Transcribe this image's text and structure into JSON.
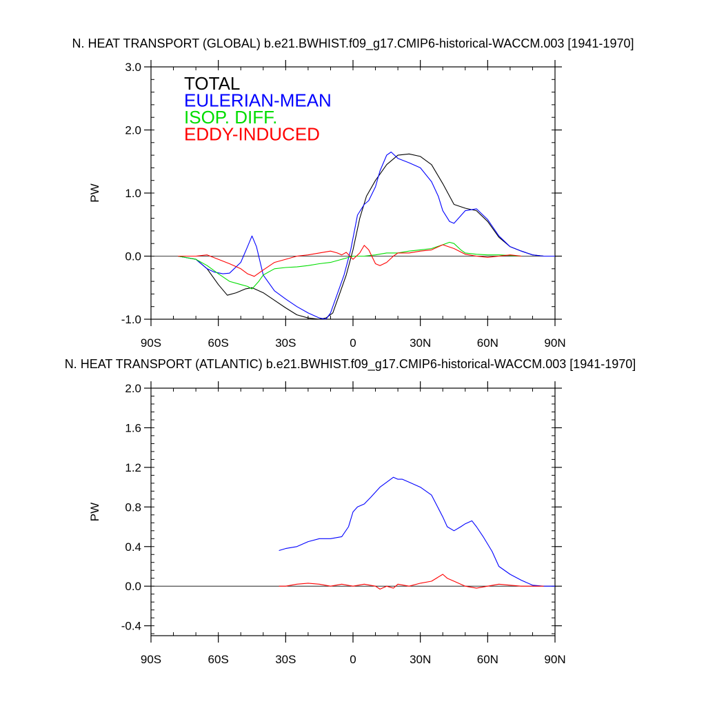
{
  "chart_data": [
    {
      "type": "line",
      "title": "N. HEAT TRANSPORT (GLOBAL) b.e21.BWHIST.f09_g17.CMIP6-historical-WACCM.003 [1941-1970]",
      "xlabel": "",
      "ylabel": "PW",
      "xlim": [
        -90,
        90
      ],
      "ylim": [
        -1.0,
        3.0
      ],
      "x_ticks": [
        -90,
        -60,
        -30,
        0,
        30,
        60,
        90
      ],
      "x_tick_labels": [
        "90S",
        "60S",
        "30S",
        "0",
        "30N",
        "60N",
        "90N"
      ],
      "y_ticks": [
        -1.0,
        0.0,
        1.0,
        2.0,
        3.0
      ],
      "y_tick_labels": [
        "-1.0",
        "0.0",
        "1.0",
        "2.0",
        "3.0"
      ],
      "zero_line": true,
      "legend_position": "top-left",
      "series": [
        {
          "name": "TOTAL",
          "color": "#000000",
          "x": [
            -78,
            -70,
            -65,
            -60,
            -56,
            -52,
            -48,
            -45,
            -40,
            -35,
            -30,
            -25,
            -20,
            -15,
            -12,
            -9,
            -6,
            -3,
            0,
            3,
            6,
            10,
            15,
            20,
            25,
            30,
            35,
            40,
            45,
            50,
            55,
            60,
            65,
            70,
            75,
            80,
            85,
            90
          ],
          "y": [
            0.0,
            -0.05,
            -0.2,
            -0.45,
            -0.62,
            -0.58,
            -0.52,
            -0.5,
            -0.58,
            -0.7,
            -0.82,
            -0.93,
            -0.98,
            -1.0,
            -0.98,
            -0.9,
            -0.6,
            -0.3,
            0.1,
            0.6,
            0.95,
            1.2,
            1.45,
            1.6,
            1.62,
            1.58,
            1.45,
            1.15,
            0.82,
            0.76,
            0.72,
            0.55,
            0.3,
            0.15,
            0.08,
            0.02,
            0.0,
            0.0
          ]
        },
        {
          "name": "EULERIAN-MEAN",
          "color": "#0000ff",
          "x": [
            -78,
            -70,
            -65,
            -62,
            -58,
            -55,
            -50,
            -47,
            -45,
            -43,
            -40,
            -35,
            -30,
            -25,
            -20,
            -15,
            -12,
            -10,
            -7,
            -4,
            -1,
            2,
            5,
            7,
            10,
            12,
            15,
            17,
            20,
            25,
            30,
            35,
            38,
            40,
            43,
            45,
            50,
            55,
            60,
            65,
            70,
            75,
            80,
            85,
            90
          ],
          "y": [
            0.0,
            -0.05,
            -0.2,
            -0.25,
            -0.28,
            -0.27,
            -0.1,
            0.15,
            0.32,
            0.15,
            -0.3,
            -0.55,
            -0.68,
            -0.8,
            -0.9,
            -0.98,
            -1.0,
            -0.9,
            -0.6,
            -0.3,
            0.1,
            0.65,
            0.82,
            0.88,
            1.1,
            1.35,
            1.6,
            1.65,
            1.55,
            1.48,
            1.4,
            1.18,
            0.95,
            0.72,
            0.55,
            0.52,
            0.72,
            0.75,
            0.58,
            0.32,
            0.15,
            0.08,
            0.02,
            0.0,
            0.0
          ]
        },
        {
          "name": "ISOP. DIFF.",
          "color": "#00dd00",
          "x": [
            -78,
            -70,
            -65,
            -60,
            -55,
            -50,
            -47,
            -45,
            -42,
            -40,
            -35,
            -30,
            -25,
            -20,
            -15,
            -10,
            -5,
            0,
            5,
            10,
            15,
            20,
            25,
            30,
            35,
            40,
            43,
            45,
            48,
            50,
            55,
            60,
            65,
            70,
            75
          ],
          "y": [
            0.0,
            -0.05,
            -0.15,
            -0.28,
            -0.4,
            -0.45,
            -0.48,
            -0.52,
            -0.4,
            -0.3,
            -0.2,
            -0.18,
            -0.17,
            -0.15,
            -0.12,
            -0.1,
            -0.05,
            0.0,
            0.0,
            0.02,
            0.05,
            0.05,
            0.08,
            0.1,
            0.12,
            0.18,
            0.22,
            0.2,
            0.1,
            0.05,
            0.03,
            0.02,
            0.02,
            0.01,
            0.0
          ]
        },
        {
          "name": "EDDY-INDUCED",
          "color": "#ff0000",
          "x": [
            -78,
            -70,
            -65,
            -60,
            -55,
            -50,
            -47,
            -44,
            -40,
            -35,
            -30,
            -25,
            -20,
            -15,
            -10,
            -7,
            -5,
            -3,
            0,
            3,
            5,
            7,
            10,
            12,
            15,
            18,
            20,
            25,
            30,
            35,
            40,
            45,
            50,
            55,
            60,
            65,
            70,
            75
          ],
          "y": [
            0.0,
            0.0,
            0.02,
            -0.05,
            -0.12,
            -0.2,
            -0.28,
            -0.32,
            -0.22,
            -0.1,
            -0.05,
            0.0,
            0.02,
            0.05,
            0.08,
            0.05,
            0.02,
            0.06,
            -0.05,
            0.05,
            0.17,
            0.1,
            -0.12,
            -0.15,
            -0.1,
            0.0,
            0.05,
            0.05,
            0.08,
            0.1,
            0.18,
            0.12,
            0.03,
            0.0,
            -0.02,
            0.0,
            0.02,
            0.0
          ]
        }
      ],
      "legend": [
        {
          "label": "TOTAL",
          "color": "#000000"
        },
        {
          "label": "EULERIAN-MEAN",
          "color": "#0000ff"
        },
        {
          "label": "ISOP. DIFF.",
          "color": "#00dd00"
        },
        {
          "label": "EDDY-INDUCED",
          "color": "#ff0000"
        }
      ]
    },
    {
      "type": "line",
      "title": "N. HEAT TRANSPORT (ATLANTIC) b.e21.BWHIST.f09_g17.CMIP6-historical-WACCM.003 [1941-1970]",
      "xlabel": "",
      "ylabel": "PW",
      "xlim": [
        -90,
        90
      ],
      "ylim": [
        -0.5,
        2.0
      ],
      "x_ticks": [
        -90,
        -60,
        -30,
        0,
        30,
        60,
        90
      ],
      "x_tick_labels": [
        "90S",
        "60S",
        "30S",
        "0",
        "30N",
        "60N",
        "90N"
      ],
      "y_ticks": [
        -0.4,
        0.0,
        0.4,
        0.8,
        1.2,
        1.6,
        2.0
      ],
      "y_tick_labels": [
        "-0.4",
        "0.0",
        "0.4",
        "0.8",
        "1.2",
        "1.6",
        "2.0"
      ],
      "zero_line": true,
      "legend_position": "none",
      "series": [
        {
          "name": "EULERIAN-MEAN",
          "color": "#0000ff",
          "x": [
            -33,
            -30,
            -25,
            -20,
            -15,
            -10,
            -5,
            -2,
            0,
            2,
            5,
            8,
            10,
            12,
            15,
            18,
            20,
            22,
            25,
            28,
            30,
            35,
            40,
            42,
            45,
            48,
            50,
            53,
            55,
            58,
            62,
            65,
            70,
            75,
            80,
            85,
            90
          ],
          "y": [
            0.36,
            0.38,
            0.4,
            0.45,
            0.48,
            0.48,
            0.5,
            0.6,
            0.75,
            0.8,
            0.83,
            0.9,
            0.95,
            1.0,
            1.05,
            1.1,
            1.08,
            1.08,
            1.05,
            1.02,
            1.0,
            0.92,
            0.7,
            0.6,
            0.56,
            0.6,
            0.63,
            0.66,
            0.6,
            0.5,
            0.35,
            0.2,
            0.12,
            0.06,
            0.01,
            0.0,
            0.0
          ]
        },
        {
          "name": "EDDY-INDUCED",
          "color": "#ff0000",
          "x": [
            -33,
            -30,
            -25,
            -20,
            -15,
            -10,
            -5,
            0,
            5,
            10,
            12,
            15,
            18,
            20,
            25,
            30,
            35,
            40,
            42,
            45,
            50,
            55,
            60,
            65,
            70,
            75,
            80,
            85
          ],
          "y": [
            0.0,
            0.0,
            0.02,
            0.03,
            0.02,
            0.0,
            0.02,
            0.0,
            0.02,
            0.0,
            -0.03,
            0.0,
            -0.02,
            0.02,
            0.0,
            0.03,
            0.05,
            0.12,
            0.08,
            0.05,
            0.0,
            -0.02,
            0.0,
            0.02,
            0.01,
            0.0,
            0.0,
            0.0
          ]
        }
      ],
      "legend": []
    }
  ]
}
